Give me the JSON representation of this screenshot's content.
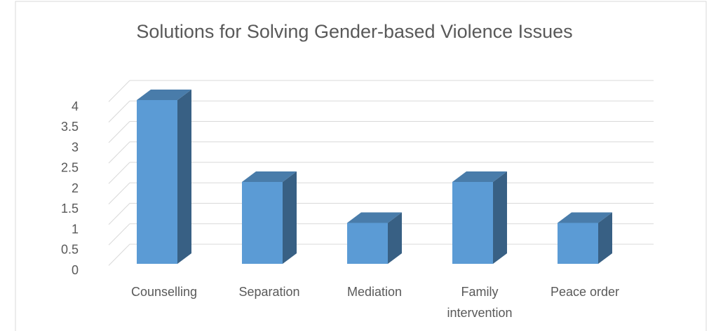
{
  "chart_data": {
    "type": "bar3d",
    "title": "Solutions for Solving Gender-based Violence Issues",
    "categories": [
      "Counselling",
      "Separation",
      "Mediation",
      "Family intervention",
      "Peace order"
    ],
    "values": [
      4,
      2,
      1,
      2,
      1
    ],
    "color": "#5b9bd5",
    "ylim": [
      0,
      4
    ],
    "yticks": [
      0,
      0.5,
      1,
      1.5,
      2,
      2.5,
      3,
      3.5,
      4
    ],
    "grid": true
  }
}
